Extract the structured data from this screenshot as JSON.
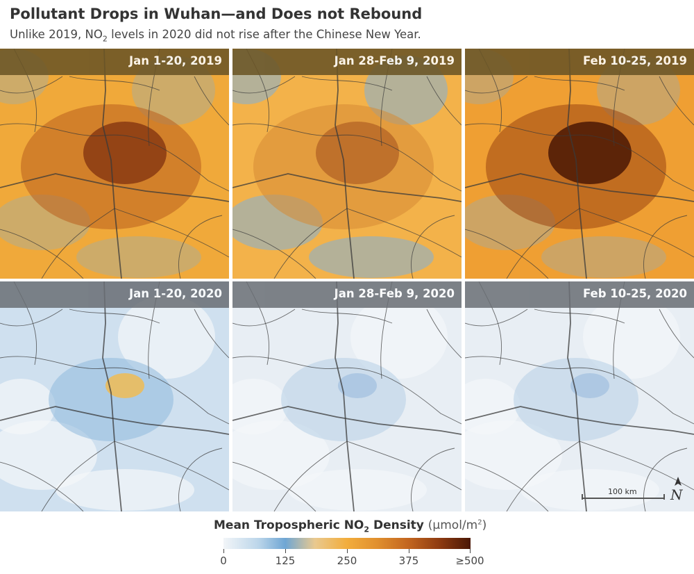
{
  "header": {
    "title": "Pollutant Drops in Wuhan—and Does not Rebound",
    "subtitle_prefix": "Unlike 2019, NO",
    "subtitle_sub": "2",
    "subtitle_suffix": " levels in 2020 did not rise after the Chinese New Year."
  },
  "panels": [
    {
      "label": "Jan 1-20, 2019",
      "year": 2019,
      "pollution_level": "high"
    },
    {
      "label": "Jan 28-Feb 9, 2019",
      "year": 2019,
      "pollution_level": "moderate"
    },
    {
      "label": "Feb 10-25, 2019",
      "year": 2019,
      "pollution_level": "very high"
    },
    {
      "label": "Jan 1-20, 2020",
      "year": 2020,
      "pollution_level": "moderate"
    },
    {
      "label": "Jan 28-Feb 9, 2020",
      "year": 2020,
      "pollution_level": "low"
    },
    {
      "label": "Feb 10-25, 2020",
      "year": 2020,
      "pollution_level": "low"
    }
  ],
  "scale_bar": {
    "text": "100 km"
  },
  "north_arrow": {
    "letter": "N"
  },
  "legend": {
    "title_prefix": "Mean Tropospheric NO",
    "title_sub": "2",
    "title_suffix": " Density",
    "unit_prefix": "(μmol/m",
    "unit_sup": "2",
    "unit_suffix": ")",
    "ticks": [
      "0",
      "125",
      "250",
      "375",
      "≥500"
    ],
    "color_stops": [
      "#f2f5f8",
      "#bcd6ea",
      "#6fa6d4",
      "#e9c98f",
      "#f2ad3c",
      "#e1902e",
      "#c2651f",
      "#8b3910",
      "#4a1705"
    ]
  },
  "colors": {
    "label_bar_2019": "#6b5526",
    "label_bar_2020": "#6a6e74",
    "road": "#3a3a3a"
  }
}
